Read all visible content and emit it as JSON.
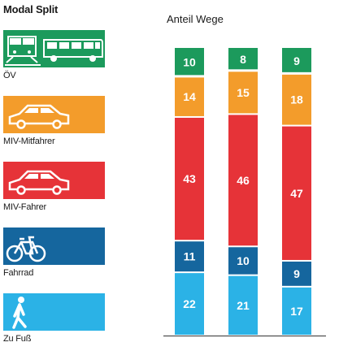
{
  "legend": {
    "title": "Modal Split",
    "items": [
      {
        "label": "ÖV",
        "color": "#1c9a5c",
        "icon": "train-bus-icon"
      },
      {
        "label": "MIV-Mitfahrer",
        "color": "#f39c2b",
        "icon": "car-icon"
      },
      {
        "label": "MIV-Fahrer",
        "color": "#e63338",
        "icon": "car-icon"
      },
      {
        "label": "Fahrrad",
        "color": "#15669e",
        "icon": "bicycle-icon"
      },
      {
        "label": "Zu Fuß",
        "color": "#2bb2e6",
        "icon": "pedestrian-icon"
      }
    ]
  },
  "chart_data": {
    "type": "bar",
    "stacked": true,
    "title": "Anteil Wege",
    "categories": [
      "",
      "",
      ""
    ],
    "series": [
      {
        "name": "Zu Fuß",
        "color": "#2bb2e6",
        "values": [
          22,
          21,
          17
        ]
      },
      {
        "name": "Fahrrad",
        "color": "#15669e",
        "values": [
          11,
          10,
          9
        ]
      },
      {
        "name": "MIV-Fahrer",
        "color": "#e63338",
        "values": [
          43,
          46,
          47
        ]
      },
      {
        "name": "MIV-Mitfahrer",
        "color": "#f39c2b",
        "values": [
          14,
          15,
          18
        ]
      },
      {
        "name": "ÖV",
        "color": "#1c9a5c",
        "values": [
          10,
          8,
          9
        ]
      }
    ],
    "ylim": [
      0,
      100
    ],
    "grid": false,
    "legend": "left"
  }
}
